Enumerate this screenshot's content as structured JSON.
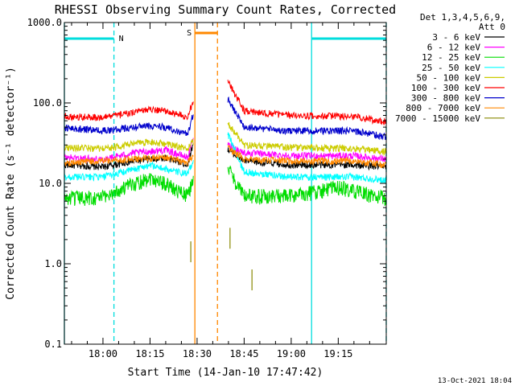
{
  "chart_data": {
    "type": "line",
    "title": "RHESSI Observing Summary Count Rates, Corrected",
    "xlabel": "Start Time (14-Jan-10 17:47:42)",
    "ylabel": "Corrected Count Rate (s⁻¹ detector⁻¹)",
    "yscale": "log",
    "ylim": [
      0.1,
      1000
    ],
    "xlim_minutes": [
      -12.3,
      90.3
    ],
    "x_ticks": [
      "18:00",
      "18:15",
      "18:30",
      "18:45",
      "19:00",
      "19:15"
    ],
    "y_ticks": [
      "1000.0",
      "100.0",
      "10.0",
      "1.0",
      "0.1"
    ],
    "legend_header": [
      "Det 1,3,4,5,6,9,",
      "Att 0"
    ],
    "legend_position": "right",
    "series": [
      {
        "name": "3 - 6 keV",
        "color": "#000000",
        "values": [
          [
            -12,
            17
          ],
          [
            0,
            16
          ],
          [
            10,
            19
          ],
          [
            20,
            21
          ],
          [
            27,
            17
          ],
          [
            29,
            35
          ],
          [
            40,
            26
          ],
          [
            45,
            19
          ],
          [
            60,
            17
          ],
          [
            80,
            17
          ],
          [
            90,
            16
          ]
        ]
      },
      {
        "name": "6 - 12 keV",
        "color": "#ff00ff",
        "values": [
          [
            -12,
            21
          ],
          [
            0,
            20
          ],
          [
            10,
            24
          ],
          [
            20,
            26
          ],
          [
            27,
            21
          ],
          [
            29,
            40
          ],
          [
            40,
            30
          ],
          [
            45,
            24
          ],
          [
            60,
            22
          ],
          [
            80,
            22
          ],
          [
            90,
            20
          ]
        ]
      },
      {
        "name": "12 - 25 keV",
        "color": "#00dd00",
        "values": [
          [
            -12,
            6.5
          ],
          [
            0,
            6.8
          ],
          [
            10,
            10
          ],
          [
            15,
            12
          ],
          [
            20,
            10
          ],
          [
            27,
            7
          ],
          [
            28.5,
            11
          ],
          [
            40,
            15
          ],
          [
            45,
            7
          ],
          [
            60,
            7
          ],
          [
            75,
            9
          ],
          [
            90,
            6.5
          ]
        ]
      },
      {
        "name": "25 - 50 keV",
        "color": "#00ffff",
        "values": [
          [
            -12,
            12
          ],
          [
            0,
            12
          ],
          [
            10,
            15
          ],
          [
            15,
            17
          ],
          [
            20,
            15
          ],
          [
            27,
            13
          ],
          [
            28.5,
            18
          ],
          [
            40,
            40
          ],
          [
            45,
            14
          ],
          [
            60,
            12
          ],
          [
            80,
            12
          ],
          [
            90,
            11
          ]
        ]
      },
      {
        "name": "50 - 100 keV",
        "color": "#cccc00",
        "values": [
          [
            -12,
            28
          ],
          [
            0,
            27
          ],
          [
            10,
            31
          ],
          [
            15,
            33
          ],
          [
            20,
            31
          ],
          [
            27,
            27
          ],
          [
            28.5,
            32
          ],
          [
            40,
            55
          ],
          [
            45,
            30
          ],
          [
            60,
            28
          ],
          [
            80,
            27
          ],
          [
            90,
            25
          ]
        ]
      },
      {
        "name": "100 - 300 keV",
        "color": "#ff0000",
        "values": [
          [
            -12,
            68
          ],
          [
            0,
            66
          ],
          [
            10,
            76
          ],
          [
            15,
            84
          ],
          [
            20,
            80
          ],
          [
            27,
            66
          ],
          [
            28.5,
            100
          ],
          [
            40,
            180
          ],
          [
            45,
            80
          ],
          [
            60,
            70
          ],
          [
            80,
            68
          ],
          [
            90,
            58
          ]
        ]
      },
      {
        "name": "300 - 800 keV",
        "color": "#0000cc",
        "values": [
          [
            -12,
            49
          ],
          [
            0,
            45
          ],
          [
            10,
            50
          ],
          [
            15,
            52
          ],
          [
            20,
            50
          ],
          [
            27,
            41
          ],
          [
            28.5,
            68
          ],
          [
            40,
            110
          ],
          [
            45,
            50
          ],
          [
            60,
            45
          ],
          [
            80,
            45
          ],
          [
            90,
            38
          ]
        ]
      },
      {
        "name": "800 - 7000 keV",
        "color": "#ff8800",
        "values": [
          [
            -12,
            18
          ],
          [
            0,
            19
          ],
          [
            10,
            20
          ],
          [
            20,
            21
          ],
          [
            27,
            18
          ],
          [
            28.5,
            22
          ],
          [
            40,
            28
          ],
          [
            45,
            20
          ],
          [
            60,
            19
          ],
          [
            80,
            19
          ],
          [
            90,
            17
          ]
        ]
      },
      {
        "name": "7000 - 15000 keV",
        "color": "#888800",
        "values": [
          [
            28,
            1.9
          ],
          [
            40.5,
            2.8
          ],
          [
            47.5,
            0.85
          ]
        ]
      }
    ],
    "annotations": {
      "flags": [
        {
          "label": "N",
          "color": "#00dddd",
          "intervals": [
            [
              -12.3,
              3.5
            ],
            [
              66.5,
              90.3
            ]
          ]
        },
        {
          "label": "S",
          "color": "#ff8800",
          "intervals": [
            [
              29.3,
              36.5
            ]
          ]
        }
      ],
      "markers": [
        {
          "x": -12.3,
          "color": "#00dddd",
          "style": "solid"
        },
        {
          "x": 3.5,
          "color": "#00dddd",
          "style": "dashed"
        },
        {
          "x": 29.3,
          "color": "#ff8800",
          "style": "solid"
        },
        {
          "x": 36.5,
          "color": "#ff8800",
          "style": "dashed"
        },
        {
          "x": 66.5,
          "color": "#00dddd",
          "style": "solid"
        },
        {
          "x": 90.3,
          "color": "#00dddd",
          "style": "dashed"
        }
      ]
    }
  },
  "footer": {
    "timestamp": "13-Oct-2021 18:04"
  }
}
